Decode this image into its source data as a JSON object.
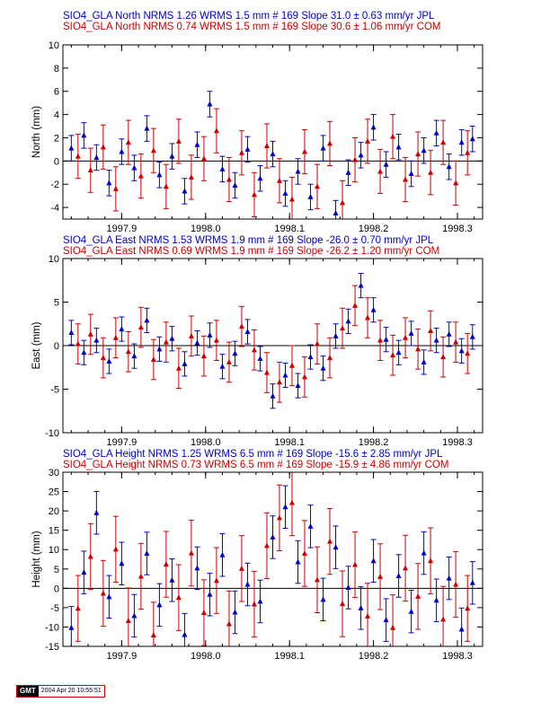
{
  "chart_data": [
    {
      "type": "scatter",
      "ylabel": "North (mm)",
      "ylim": [
        -5,
        10
      ],
      "yticks": [
        -4,
        -2,
        0,
        2,
        4,
        6,
        8,
        10
      ],
      "xlim": [
        1997.83,
        1998.33
      ],
      "xticks": [
        1997.9,
        1998.0,
        1998.1,
        1998.2,
        1998.3
      ],
      "xticklabels": [
        "1997.9",
        "1998.0",
        "1998.1",
        "1998.2",
        "1998.3"
      ],
      "header_lines": [
        {
          "text": "SIO4_GLA North NRMS 1.26 WRMS  1.5 mm # 169 Slope   31.0 ±  0.63 mm/yr JPL",
          "color": "#0000cc"
        },
        {
          "text": "SIO4_GLA North NRMS 0.74 WRMS  1.5 mm # 169 Slope   30.6 ±  1.06 mm/yr COM",
          "color": "#cc0000"
        }
      ],
      "series": [
        {
          "name": "JPL",
          "color": "#0000cc",
          "error": 1.1,
          "values": [
            [
              1997.84,
              1.1
            ],
            [
              1997.855,
              2.2
            ],
            [
              1997.87,
              0.3
            ],
            [
              1997.885,
              -1.9
            ],
            [
              1997.9,
              0.8
            ],
            [
              1997.915,
              -0.6
            ],
            [
              1997.93,
              2.8
            ],
            [
              1997.945,
              -1.2
            ],
            [
              1997.96,
              0.4
            ],
            [
              1997.975,
              -2.6
            ],
            [
              1997.99,
              1.4
            ],
            [
              1998.005,
              4.9
            ],
            [
              1998.02,
              -0.7
            ],
            [
              1998.035,
              -2.1
            ],
            [
              1998.05,
              1.0
            ],
            [
              1998.065,
              -1.5
            ],
            [
              1998.08,
              0.6
            ],
            [
              1998.095,
              -2.8
            ],
            [
              1998.11,
              -0.9
            ],
            [
              1998.125,
              -3.1
            ],
            [
              1998.14,
              1.1
            ],
            [
              1998.155,
              -4.5
            ],
            [
              1998.17,
              -1.0
            ],
            [
              1998.185,
              0.5
            ],
            [
              1998.2,
              2.9
            ],
            [
              1998.215,
              -0.3
            ],
            [
              1998.23,
              1.2
            ],
            [
              1998.245,
              -1.1
            ],
            [
              1998.26,
              0.9
            ],
            [
              1998.275,
              2.4
            ],
            [
              1998.29,
              -0.5
            ],
            [
              1998.305,
              1.6
            ],
            [
              1998.318,
              1.9
            ]
          ]
        },
        {
          "name": "COM",
          "color": "#cc0000",
          "error": 1.9,
          "values": [
            [
              1997.848,
              0.4
            ],
            [
              1997.863,
              -0.8
            ],
            [
              1997.878,
              1.2
            ],
            [
              1997.893,
              -2.4
            ],
            [
              1997.908,
              1.6
            ],
            [
              1997.923,
              -1.3
            ],
            [
              1997.938,
              0.9
            ],
            [
              1997.953,
              -2.2
            ],
            [
              1997.968,
              1.7
            ],
            [
              1997.983,
              -1.4
            ],
            [
              1997.998,
              0.2
            ],
            [
              1998.013,
              2.6
            ],
            [
              1998.028,
              -1.6
            ],
            [
              1998.043,
              0.7
            ],
            [
              1998.058,
              -2.9
            ],
            [
              1998.073,
              1.3
            ],
            [
              1998.088,
              -1.7
            ],
            [
              1998.103,
              -3.3
            ],
            [
              1998.118,
              0.8
            ],
            [
              1998.133,
              -2.2
            ],
            [
              1998.148,
              1.5
            ],
            [
              1998.163,
              -3.6
            ],
            [
              1998.178,
              0.1
            ],
            [
              1998.193,
              1.7
            ],
            [
              1998.208,
              -0.9
            ],
            [
              1998.223,
              2.1
            ],
            [
              1998.238,
              -1.6
            ],
            [
              1998.253,
              0.6
            ],
            [
              1998.268,
              -1.0
            ],
            [
              1998.283,
              1.6
            ],
            [
              1998.298,
              -1.9
            ],
            [
              1998.312,
              0.7
            ]
          ]
        }
      ]
    },
    {
      "type": "scatter",
      "ylabel": "East (mm)",
      "ylim": [
        -10,
        10
      ],
      "yticks": [
        -10,
        -5,
        0,
        5,
        10
      ],
      "xlim": [
        1997.83,
        1998.33
      ],
      "xticks": [
        1997.9,
        1998.0,
        1998.1,
        1998.2,
        1998.3
      ],
      "xticklabels": [
        "1997.9",
        "1998.0",
        "1998.1",
        "1998.2",
        "1998.3"
      ],
      "header_lines": [
        {
          "text": "SIO4_GLA East NRMS 1.53 WRMS  1.9 mm # 169 Slope  -26.0 ±  0.70 mm/yr JPL",
          "color": "#0000cc"
        },
        {
          "text": "SIO4_GLA East NRMS 0.69 WRMS  1.9 mm # 169 Slope  -26.2 ±  1.20 mm/yr COM",
          "color": "#cc0000"
        }
      ],
      "series": [
        {
          "name": "JPL",
          "color": "#0000cc",
          "error": 1.4,
          "values": [
            [
              1997.84,
              1.5
            ],
            [
              1997.855,
              -0.8
            ],
            [
              1997.87,
              0.6
            ],
            [
              1997.885,
              -1.8
            ],
            [
              1997.9,
              1.9
            ],
            [
              1997.915,
              -1.2
            ],
            [
              1997.93,
              2.9
            ],
            [
              1997.945,
              -0.4
            ],
            [
              1997.96,
              0.8
            ],
            [
              1997.975,
              -2.1
            ],
            [
              1997.99,
              0.3
            ],
            [
              1998.005,
              1.2
            ],
            [
              1998.02,
              -2.4
            ],
            [
              1998.035,
              -0.9
            ],
            [
              1998.05,
              1.6
            ],
            [
              1998.065,
              -1.5
            ],
            [
              1998.08,
              -5.8
            ],
            [
              1998.095,
              -3.4
            ],
            [
              1998.11,
              -4.6
            ],
            [
              1998.125,
              -1.3
            ],
            [
              1998.14,
              -2.6
            ],
            [
              1998.155,
              1.1
            ],
            [
              1998.17,
              2.8
            ],
            [
              1998.185,
              6.9
            ],
            [
              1998.2,
              4.1
            ],
            [
              1998.215,
              0.7
            ],
            [
              1998.23,
              -0.8
            ],
            [
              1998.245,
              1.4
            ],
            [
              1998.26,
              -1.9
            ],
            [
              1998.275,
              0.6
            ],
            [
              1998.29,
              1.3
            ],
            [
              1998.305,
              -0.6
            ],
            [
              1998.318,
              1.0
            ]
          ]
        },
        {
          "name": "COM",
          "color": "#cc0000",
          "error": 2.3,
          "values": [
            [
              1997.848,
              0.2
            ],
            [
              1997.863,
              1.3
            ],
            [
              1997.878,
              -1.4
            ],
            [
              1997.893,
              0.9
            ],
            [
              1997.908,
              -0.7
            ],
            [
              1997.923,
              2.1
            ],
            [
              1997.938,
              -1.6
            ],
            [
              1997.953,
              0.4
            ],
            [
              1997.968,
              -2.6
            ],
            [
              1997.983,
              1.1
            ],
            [
              1997.998,
              -1.2
            ],
            [
              1998.013,
              0.6
            ],
            [
              1998.028,
              -1.9
            ],
            [
              1998.043,
              2.2
            ],
            [
              1998.058,
              -0.5
            ],
            [
              1998.073,
              -3.1
            ],
            [
              1998.088,
              -4.2
            ],
            [
              1998.103,
              -2.3
            ],
            [
              1998.118,
              -3.6
            ],
            [
              1998.133,
              0.2
            ],
            [
              1998.148,
              -1.4
            ],
            [
              1998.163,
              2.0
            ],
            [
              1998.178,
              4.6
            ],
            [
              1998.193,
              3.2
            ],
            [
              1998.208,
              0.6
            ],
            [
              1998.223,
              -1.1
            ],
            [
              1998.238,
              0.9
            ],
            [
              1998.253,
              -0.4
            ],
            [
              1998.268,
              1.7
            ],
            [
              1998.283,
              -1.3
            ],
            [
              1998.298,
              0.4
            ],
            [
              1998.312,
              -0.9
            ]
          ]
        }
      ]
    },
    {
      "type": "scatter",
      "ylabel": "Height (mm)",
      "ylim": [
        -15,
        30
      ],
      "yticks": [
        -15,
        -10,
        -5,
        0,
        5,
        10,
        15,
        20,
        25,
        30
      ],
      "xlim": [
        1997.83,
        1998.33
      ],
      "xticks": [
        1997.9,
        1998.0,
        1998.1,
        1998.2,
        1998.3
      ],
      "xticklabels": [
        "1997.9",
        "1998.0",
        "1998.1",
        "1998.2",
        "1998.3"
      ],
      "header_lines": [
        {
          "text": "SIO4_GLA Height NRMS 1.25 WRMS  6.5 mm # 169 Slope  -15.6 ±  2.85 mm/yr JPL",
          "color": "#0000cc"
        },
        {
          "text": "SIO4_GLA Height NRMS 0.73 WRMS  6.5 mm # 169 Slope  -15.9 ±  4.86 mm/yr COM",
          "color": "#cc0000"
        }
      ],
      "series": [
        {
          "name": "JPL",
          "color": "#0000cc",
          "error": 5.5,
          "values": [
            [
              1997.84,
              -10.2
            ],
            [
              1997.855,
              4.1
            ],
            [
              1997.87,
              19.5
            ],
            [
              1997.885,
              -2.2
            ],
            [
              1997.9,
              6.4
            ],
            [
              1997.915,
              -7.1
            ],
            [
              1997.93,
              9.0
            ],
            [
              1997.945,
              -4.3
            ],
            [
              1997.96,
              2.1
            ],
            [
              1997.975,
              -12.0
            ],
            [
              1997.99,
              5.2
            ],
            [
              1998.005,
              -1.6
            ],
            [
              1998.02,
              8.6
            ],
            [
              1998.035,
              -6.2
            ],
            [
              1998.05,
              1.0
            ],
            [
              1998.065,
              -3.4
            ],
            [
              1998.08,
              13.2
            ],
            [
              1998.095,
              21.0
            ],
            [
              1998.11,
              6.8
            ],
            [
              1998.125,
              16.0
            ],
            [
              1998.14,
              -2.9
            ],
            [
              1998.155,
              10.6
            ],
            [
              1998.17,
              0.2
            ],
            [
              1998.185,
              -5.1
            ],
            [
              1998.2,
              7.1
            ],
            [
              1998.215,
              -8.2
            ],
            [
              1998.23,
              3.2
            ],
            [
              1998.245,
              -6.0
            ],
            [
              1998.26,
              9.1
            ],
            [
              1998.275,
              -3.1
            ],
            [
              1998.29,
              2.6
            ],
            [
              1998.305,
              -10.6
            ],
            [
              1998.318,
              1.4
            ]
          ]
        },
        {
          "name": "COM",
          "color": "#cc0000",
          "error": 8.5,
          "values": [
            [
              1997.848,
              -5.2
            ],
            [
              1997.863,
              8.2
            ],
            [
              1997.878,
              -1.3
            ],
            [
              1997.893,
              10.1
            ],
            [
              1997.908,
              -8.4
            ],
            [
              1997.923,
              3.1
            ],
            [
              1997.938,
              -12.1
            ],
            [
              1997.953,
              6.2
            ],
            [
              1997.968,
              -2.4
            ],
            [
              1997.983,
              9.1
            ],
            [
              1997.998,
              -6.3
            ],
            [
              1998.013,
              2.0
            ],
            [
              1998.028,
              -9.2
            ],
            [
              1998.043,
              5.1
            ],
            [
              1998.058,
              -4.1
            ],
            [
              1998.073,
              11.0
            ],
            [
              1998.088,
              18.2
            ],
            [
              1998.103,
              22.1
            ],
            [
              1998.118,
              9.0
            ],
            [
              1998.133,
              2.2
            ],
            [
              1998.148,
              12.1
            ],
            [
              1998.163,
              -4.0
            ],
            [
              1998.178,
              6.1
            ],
            [
              1998.193,
              -7.2
            ],
            [
              1998.208,
              3.0
            ],
            [
              1998.223,
              -10.2
            ],
            [
              1998.238,
              5.2
            ],
            [
              1998.253,
              -2.1
            ],
            [
              1998.268,
              7.1
            ],
            [
              1998.283,
              -8.0
            ],
            [
              1998.298,
              1.0
            ],
            [
              1998.312,
              -5.2
            ]
          ]
        }
      ]
    }
  ],
  "footer": {
    "logo": "GMT",
    "timestamp": "2004 Apr 20 10:55:51"
  }
}
